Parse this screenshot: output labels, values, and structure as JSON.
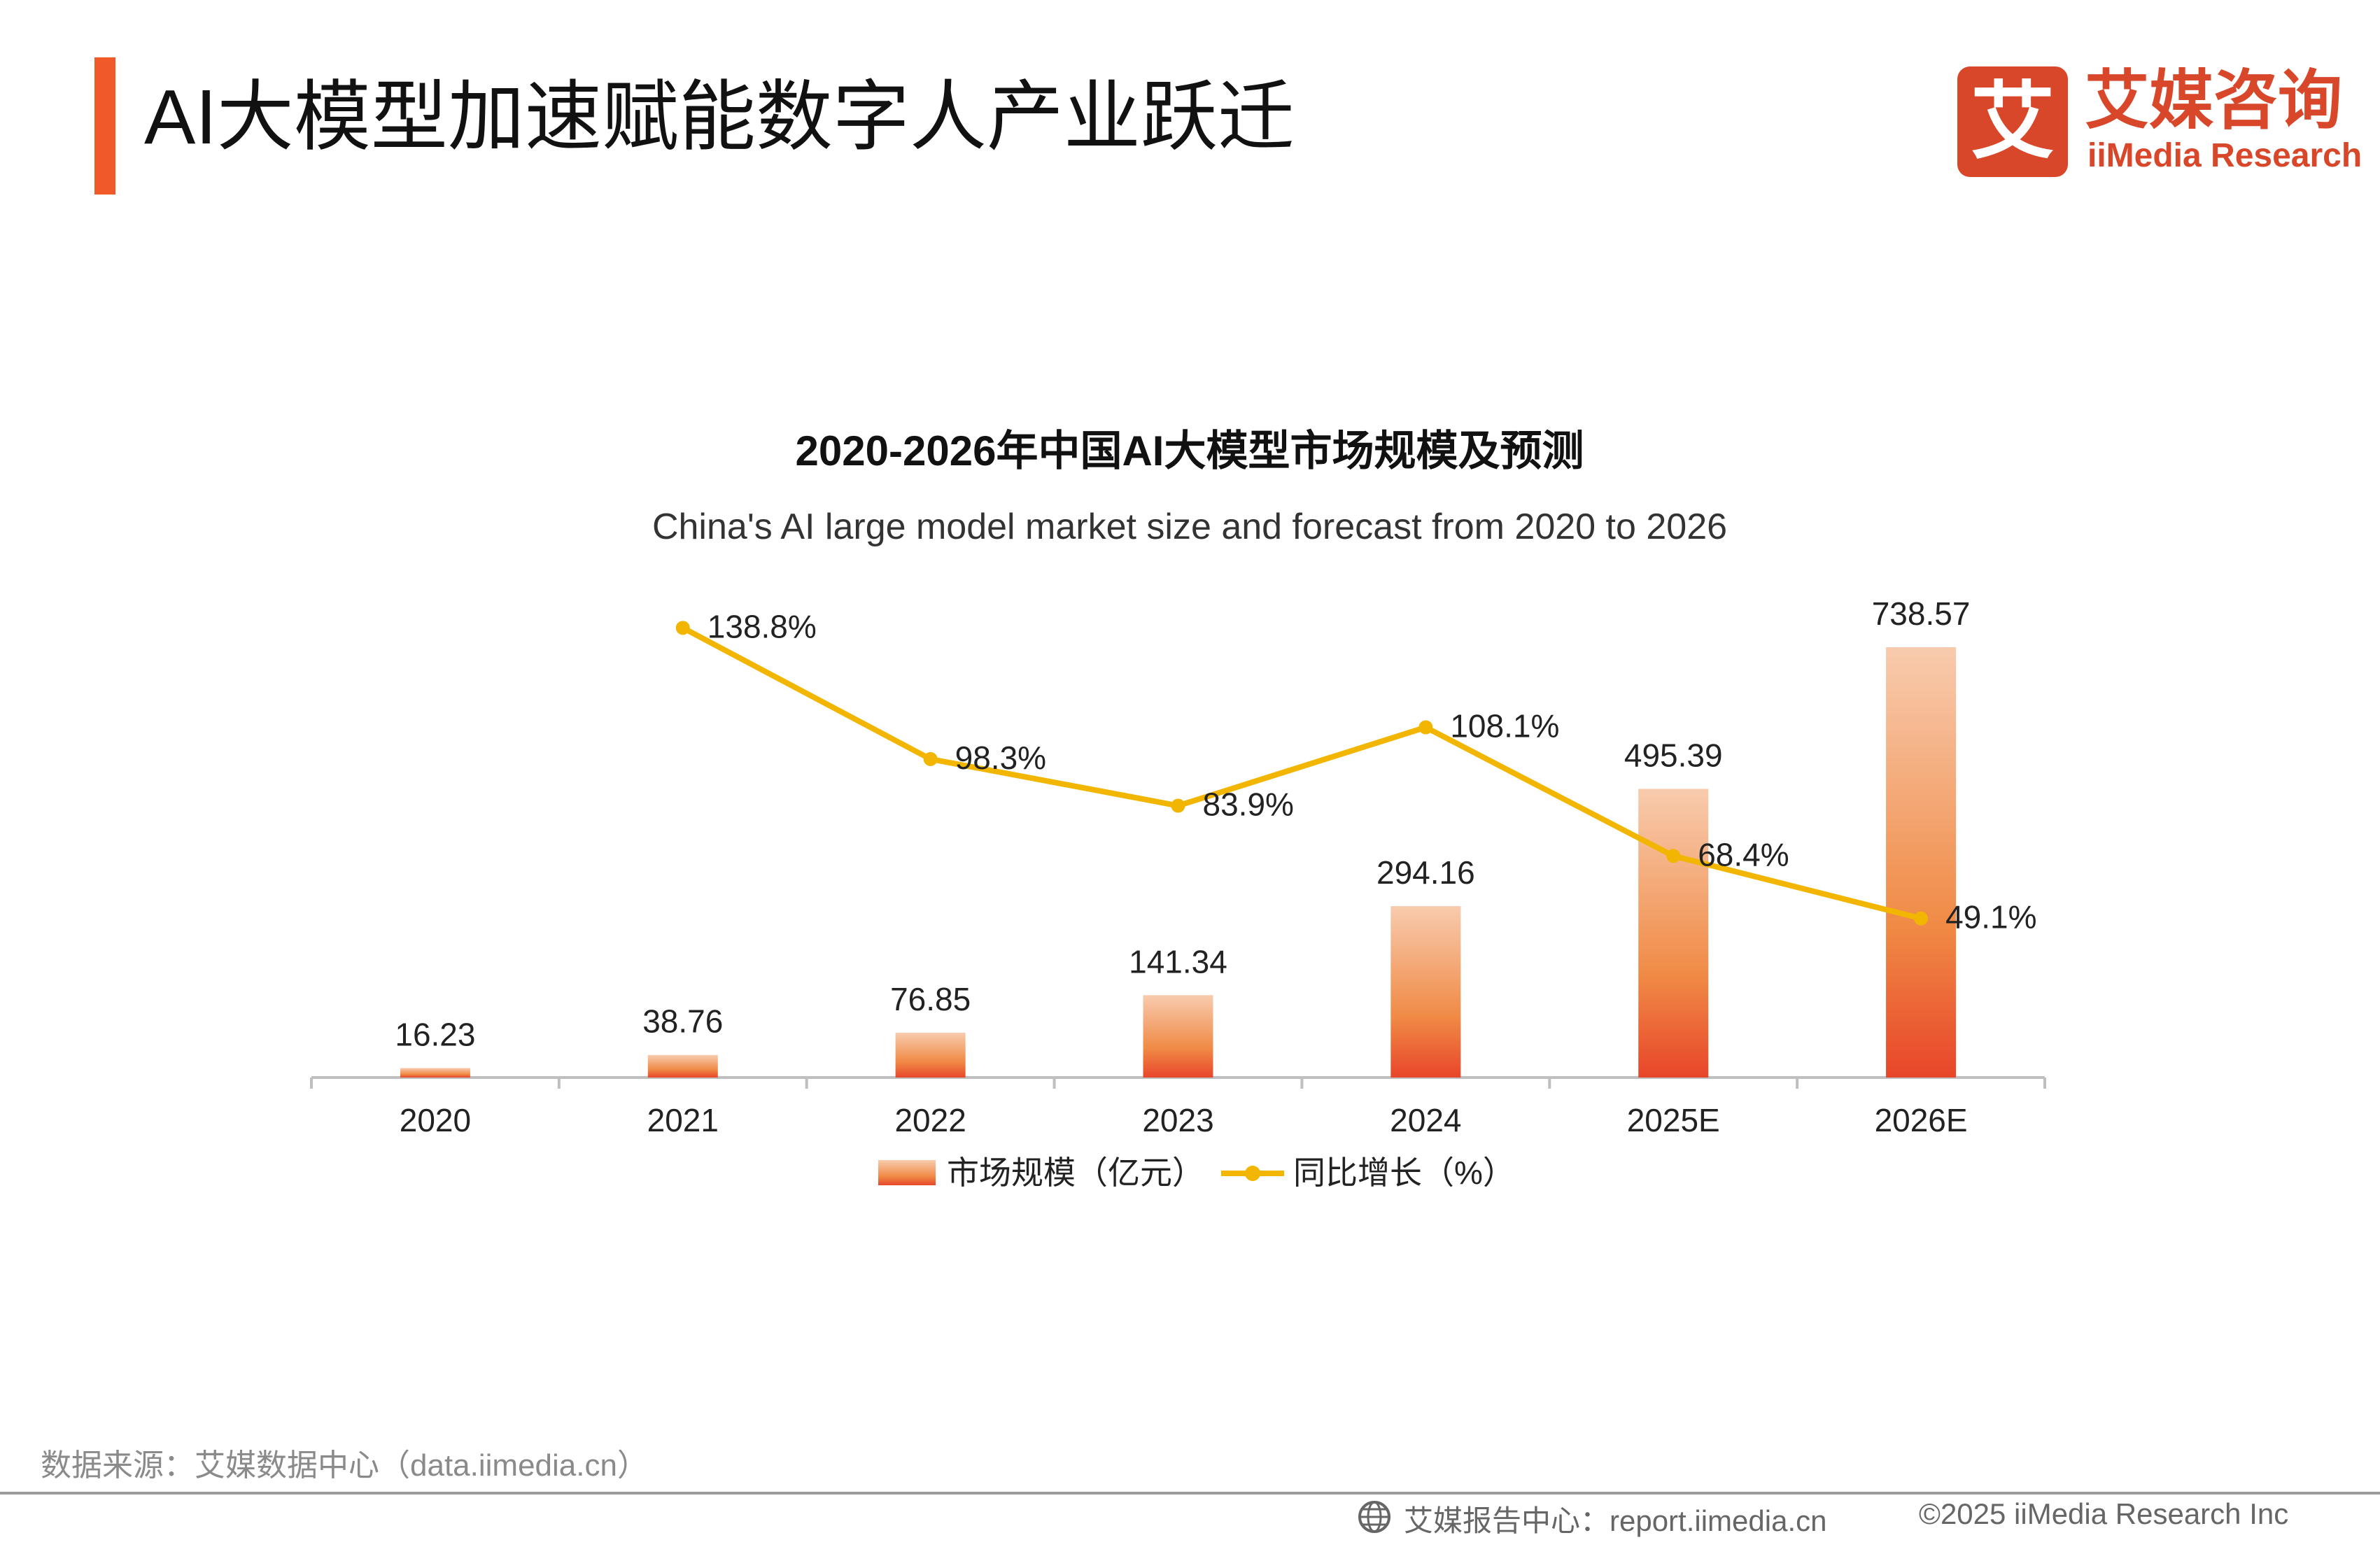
{
  "header": {
    "title": "AI大模型加速赋能数字人产业跃迁",
    "logo_mark": "艾",
    "logo_cn": "艾媒咨询",
    "logo_en": "iiMedia Research"
  },
  "colors": {
    "accent": "#f05a28",
    "brand": "#d9472b",
    "bar_top": "#f8cbae",
    "bar_mid": "#f08a45",
    "bar_bottom": "#e8462a",
    "line": "#f2b600"
  },
  "chart_data": {
    "type": "bar",
    "title": "2020-2026年中国AI大模型市场规模及预测",
    "subtitle": "China's AI large model market size and forecast from 2020 to 2026",
    "categories": [
      "2020",
      "2021",
      "2022",
      "2023",
      "2024",
      "2025E",
      "2026E"
    ],
    "series": [
      {
        "name": "市场规模（亿元）",
        "type": "bar",
        "values": [
          16.23,
          38.76,
          76.85,
          141.34,
          294.16,
          495.39,
          738.57
        ],
        "labels": [
          "16.23",
          "38.76",
          "76.85",
          "141.34",
          "294.16",
          "495.39",
          "738.57"
        ]
      },
      {
        "name": "同比增长（%）",
        "type": "line",
        "values": [
          null,
          138.8,
          98.3,
          83.9,
          108.1,
          68.4,
          49.1
        ],
        "labels": [
          "",
          "138.8%",
          "98.3%",
          "83.9%",
          "108.1%",
          "68.4%",
          "49.1%"
        ]
      }
    ],
    "ylim": [
      0,
      738.57
    ],
    "y2lim": [
      0,
      160
    ],
    "grid": false,
    "legend": "bottom"
  },
  "footer": {
    "source": "数据来源：艾媒数据中心（data.iimedia.cn）",
    "report": "艾媒报告中心：report.iimedia.cn",
    "copyright": "©2025  iiMedia Research  Inc"
  }
}
